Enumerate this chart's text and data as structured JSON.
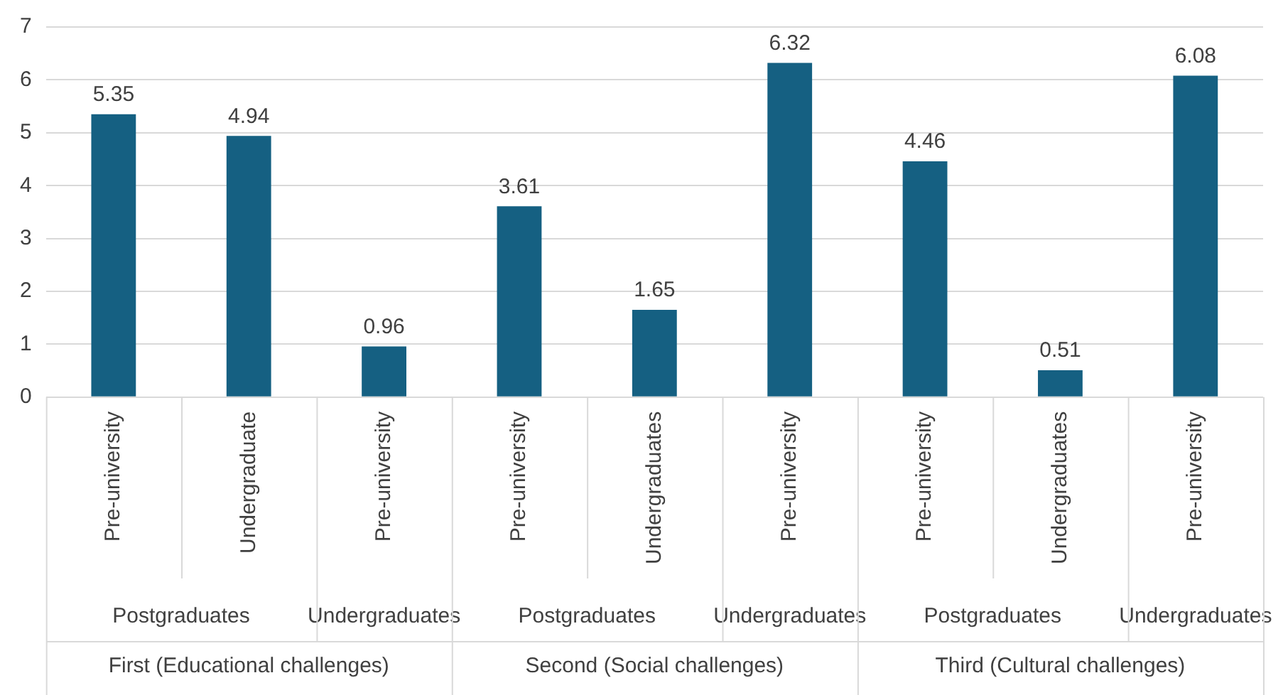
{
  "chart_data": {
    "type": "bar",
    "categories": [
      "Pre-university",
      "Undergraduate",
      "Pre-university",
      "Pre-university",
      "Undergraduates",
      "Pre-university",
      "Pre-university",
      "Undergraduates",
      "Pre-university"
    ],
    "values": [
      5.35,
      4.94,
      0.96,
      3.61,
      1.65,
      6.32,
      4.46,
      0.51,
      6.08
    ],
    "color": "#156082",
    "ylim": [
      0,
      7
    ],
    "yticks": [
      0,
      1,
      2,
      3,
      4,
      5,
      6,
      7
    ],
    "grid": "y",
    "data_labels": true,
    "annotations": [
      "Postgraduates",
      "Undergraduates",
      "Postgraduates",
      "Undergraduates",
      "Postgraduates",
      "Undergraduates",
      "First (Educational challenges)",
      "Second (Social challenges)",
      "Third (Cultural challenges)"
    ]
  }
}
